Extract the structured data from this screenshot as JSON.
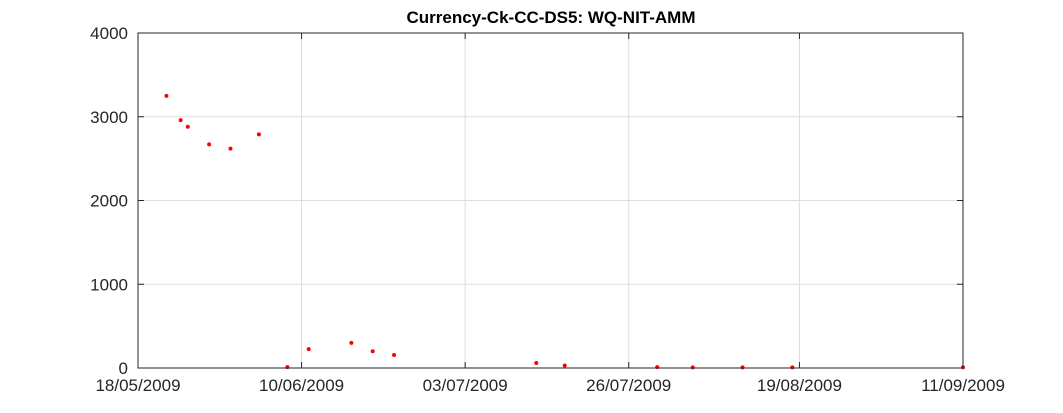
{
  "chart_data": {
    "type": "scatter",
    "title": "Currency-Ck-CC-DS5: WQ-NIT-AMM",
    "xlabel": "",
    "ylabel": "",
    "x_axis_type": "date",
    "xlim": [
      "2009-05-18",
      "2009-09-11"
    ],
    "ylim": [
      0,
      4000
    ],
    "x_ticks": [
      "2009-05-18",
      "2009-06-10",
      "2009-07-03",
      "2009-07-26",
      "2009-08-19",
      "2009-09-11"
    ],
    "x_tick_labels": [
      "18/05/2009",
      "10/06/2009",
      "03/07/2009",
      "26/07/2009",
      "19/08/2009",
      "11/09/2009"
    ],
    "y_ticks": [
      0,
      1000,
      2000,
      3000,
      4000
    ],
    "y_tick_labels": [
      "0",
      "1000",
      "2000",
      "3000",
      "4000"
    ],
    "grid": true,
    "marker_color": "#ff0000",
    "series": [
      {
        "points": [
          {
            "x": "2009-05-22",
            "y": 3250
          },
          {
            "x": "2009-05-24",
            "y": 2960
          },
          {
            "x": "2009-05-25",
            "y": 2880
          },
          {
            "x": "2009-05-28",
            "y": 2670
          },
          {
            "x": "2009-05-31",
            "y": 2620
          },
          {
            "x": "2009-06-04",
            "y": 2790
          },
          {
            "x": "2009-06-08",
            "y": 10
          },
          {
            "x": "2009-06-11",
            "y": 225
          },
          {
            "x": "2009-06-17",
            "y": 300
          },
          {
            "x": "2009-06-20",
            "y": 200
          },
          {
            "x": "2009-06-23",
            "y": 155
          },
          {
            "x": "2009-07-13",
            "y": 60
          },
          {
            "x": "2009-07-17",
            "y": 30
          },
          {
            "x": "2009-07-30",
            "y": 10
          },
          {
            "x": "2009-08-04",
            "y": 8
          },
          {
            "x": "2009-08-11",
            "y": 8
          },
          {
            "x": "2009-08-18",
            "y": 8
          },
          {
            "x": "2009-09-11",
            "y": 8
          }
        ]
      }
    ]
  }
}
